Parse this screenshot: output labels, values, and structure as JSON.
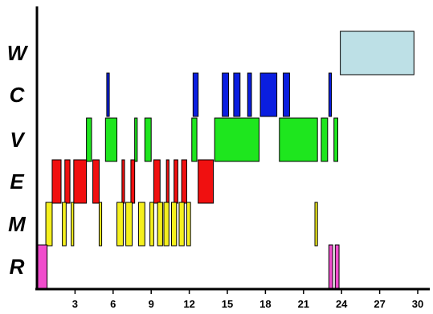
{
  "chart_data": {
    "type": "gantt",
    "xlim": [
      0,
      30
    ],
    "xticks": [
      3,
      6,
      9,
      12,
      15,
      18,
      21,
      24,
      27,
      30
    ],
    "rows": [
      "W",
      "C",
      "V",
      "E",
      "M",
      "R"
    ],
    "colors": {
      "W": "#bde0e6",
      "C": "#0a1ee0",
      "V": "#1ee61e",
      "E": "#f01010",
      "M": "#f5f01e",
      "R": "#f04ccc"
    },
    "intervals": {
      "W": [
        [
          23.9,
          29.7
        ]
      ],
      "C": [
        [
          5.5,
          5.7
        ],
        [
          12.3,
          12.7
        ],
        [
          14.6,
          15.1
        ],
        [
          15.5,
          16.0
        ],
        [
          16.6,
          16.9
        ],
        [
          17.6,
          18.9
        ],
        [
          19.4,
          19.9
        ],
        [
          23.0,
          23.2
        ]
      ],
      "V": [
        [
          3.9,
          4.3
        ],
        [
          5.4,
          6.3
        ],
        [
          7.7,
          7.9
        ],
        [
          8.5,
          9.0
        ],
        [
          12.2,
          12.6
        ],
        [
          14.0,
          17.5
        ],
        [
          19.1,
          22.1
        ],
        [
          22.4,
          22.9
        ],
        [
          23.4,
          23.7
        ]
      ],
      "E": [
        [
          1.2,
          1.9
        ],
        [
          2.2,
          2.6
        ],
        [
          2.9,
          3.9
        ],
        [
          4.4,
          4.9
        ],
        [
          6.7,
          6.9
        ],
        [
          7.4,
          7.7
        ],
        [
          9.2,
          9.7
        ],
        [
          10.2,
          10.4
        ],
        [
          10.8,
          11.1
        ],
        [
          11.4,
          11.8
        ],
        [
          12.7,
          13.9
        ]
      ],
      "M": [
        [
          0.7,
          1.2
        ],
        [
          2.0,
          2.3
        ],
        [
          2.7,
          2.9
        ],
        [
          4.9,
          5.1
        ],
        [
          6.3,
          6.8
        ],
        [
          7.0,
          7.5
        ],
        [
          8.0,
          8.5
        ],
        [
          8.9,
          9.2
        ],
        [
          9.5,
          9.9
        ],
        [
          10.0,
          10.4
        ],
        [
          10.6,
          11.0
        ],
        [
          11.2,
          11.6
        ],
        [
          11.8,
          12.1
        ],
        [
          21.9,
          22.1
        ]
      ],
      "R": [
        [
          0.0,
          0.8
        ],
        [
          23.0,
          23.3
        ],
        [
          23.5,
          23.8
        ]
      ]
    }
  }
}
